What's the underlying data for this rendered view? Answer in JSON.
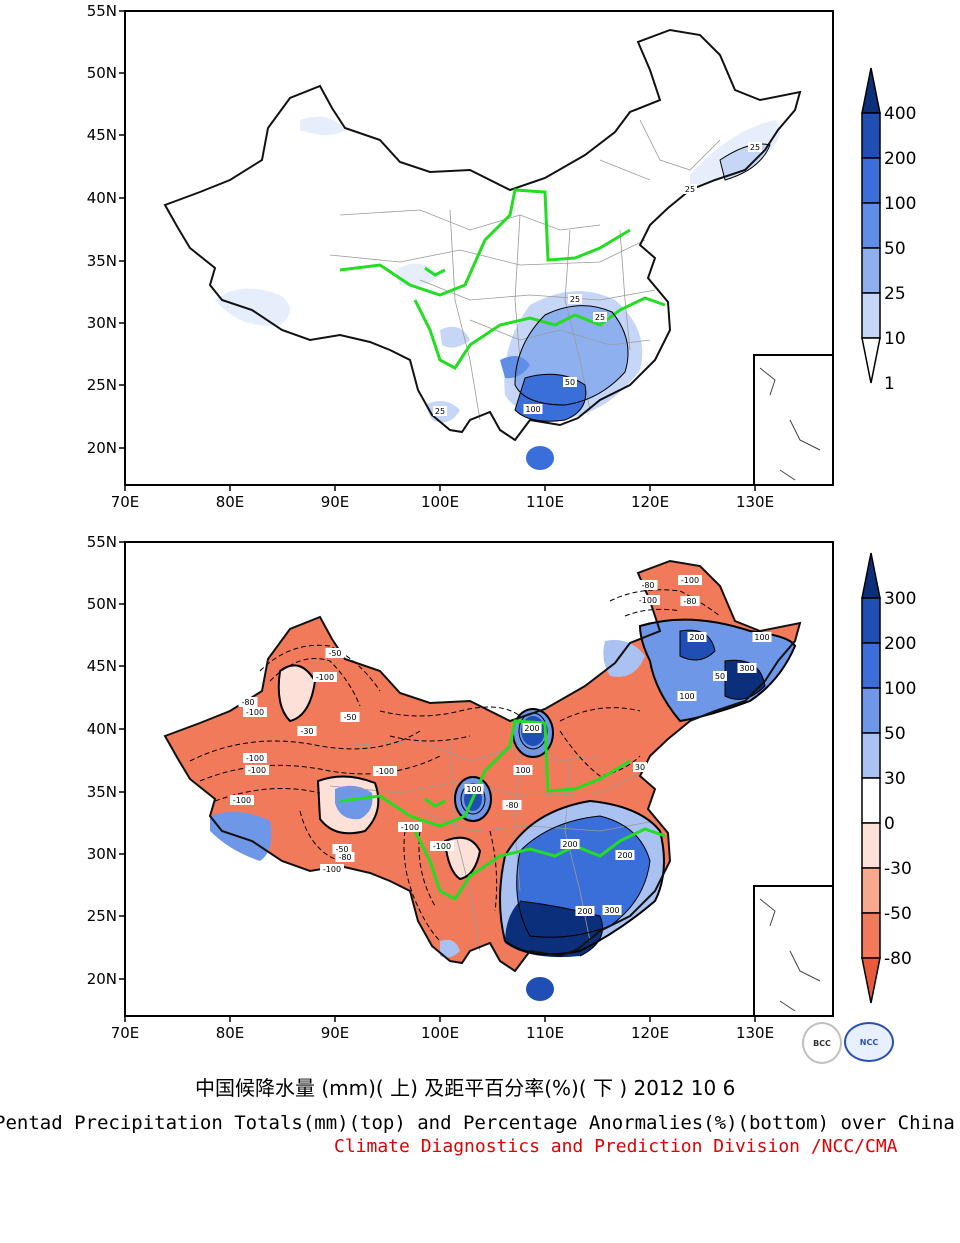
{
  "maps": [
    {
      "id": "top",
      "lat_ticks": [
        "55N",
        "50N",
        "45N",
        "40N",
        "35N",
        "30N",
        "25N",
        "20N"
      ],
      "lon_ticks": [
        "70E",
        "80E",
        "90E",
        "100E",
        "110E",
        "120E",
        "130E"
      ],
      "contour_labels": [
        "25",
        "25",
        "25",
        "25",
        "50",
        "100",
        "25"
      ],
      "colorbar": {
        "labels": [
          "400",
          "200",
          "100",
          "50",
          "25",
          "10",
          "1"
        ],
        "colors": [
          "#0b2f7a",
          "#1f4fb5",
          "#3a6ed9",
          "#5f8ee6",
          "#8fb0ef",
          "#c6d6f7",
          "#ffffff"
        ]
      }
    },
    {
      "id": "bottom",
      "lat_ticks": [
        "55N",
        "50N",
        "45N",
        "40N",
        "35N",
        "30N",
        "25N",
        "20N"
      ],
      "lon_ticks": [
        "70E",
        "80E",
        "90E",
        "100E",
        "110E",
        "120E",
        "130E"
      ],
      "contour_labels": [
        "-100",
        "-80",
        "-100",
        "-80",
        "-50",
        "-100",
        "-80",
        "-100",
        "-100",
        "-100",
        "-100",
        "-100",
        "-30",
        "-50",
        "-100",
        "200",
        "100",
        "-80",
        "-100",
        "100",
        "-50",
        "-80",
        "-100",
        "200",
        "200",
        "300",
        "200",
        "300",
        "200",
        "100",
        "50",
        "100",
        "30"
      ],
      "colorbar": {
        "labels": [
          "300",
          "200",
          "100",
          "50",
          "30",
          "0",
          "-30",
          "-50",
          "-80"
        ],
        "colors": [
          "#0b2f7a",
          "#1f4fb5",
          "#3a6ed9",
          "#6e97e8",
          "#a9c2f2",
          "#ffffff",
          "#fde0d8",
          "#f7a98f",
          "#f07a5a",
          "#e85a3a"
        ]
      }
    }
  ],
  "caption_cn": "中国候降水量 (mm)( 上) 及距平百分率(%)( 下 ) 2012 10 6",
  "caption_en": "Pentad Precipitation Totals(mm)(top) and Percentage Anormalies(%)(bottom) over China",
  "caption_division": "Climate Diagnostics and Prediction Division /NCC/CMA",
  "logo_bcc": "BCC",
  "logo_ncc": "NCC"
}
